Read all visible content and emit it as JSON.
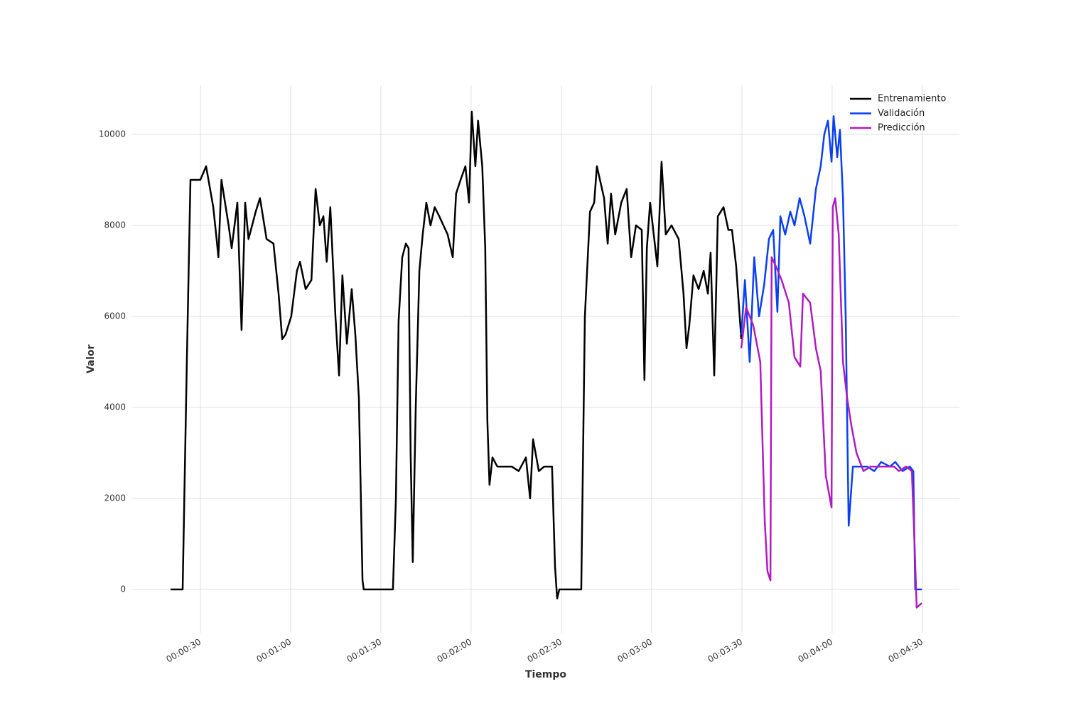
{
  "chart_data": {
    "type": "line",
    "x_label": "Tiempo",
    "y_label": "Valor",
    "xlim": [
      7.1,
      282.3
    ],
    "ylim": [
      -953,
      11078
    ],
    "xticks": [
      {
        "value": 30,
        "label": "00:00:30"
      },
      {
        "value": 60,
        "label": "00:01:00"
      },
      {
        "value": 90,
        "label": "00:01:30"
      },
      {
        "value": 120,
        "label": "00:02:00"
      },
      {
        "value": 150,
        "label": "00:02:30"
      },
      {
        "value": 180,
        "label": "00:03:00"
      },
      {
        "value": 210,
        "label": "00:03:30"
      },
      {
        "value": 240,
        "label": "00:04:00"
      },
      {
        "value": 270,
        "label": "00:04:30"
      }
    ],
    "yticks": [
      0,
      2000,
      4000,
      6000,
      8000,
      10000
    ],
    "grid": true,
    "legend": "upper right",
    "series": [
      {
        "name": "Entrenamiento",
        "color": "#000000",
        "x": [
          20.1,
          24.1,
          25.5,
          26.7,
          30,
          31.9,
          34.3,
          35.4,
          36,
          37,
          39.4,
          40.4,
          42.3,
          43.7,
          44.9,
          46,
          48.4,
          49.8,
          52,
          54.3,
          56,
          57.2,
          58.3,
          60.2,
          62.1,
          63.1,
          65,
          66.9,
          68.3,
          69.7,
          70.9,
          72,
          73.2,
          74.9,
          76.1,
          77.2,
          78.7,
          80.3,
          81.5,
          82.7,
          83.9,
          84.3,
          94,
          95,
          95.9,
          97.1,
          98.3,
          99.2,
          99.9,
          100.6,
          101.6,
          102.8,
          103.9,
          105.1,
          106.5,
          107.9,
          109.4,
          110.8,
          112.2,
          113.9,
          115,
          116.5,
          118.1,
          119.3,
          120.2,
          121.4,
          122.3,
          123.7,
          124.7,
          125.4,
          126.1,
          127.1,
          128.7,
          131.1,
          133.5,
          135.8,
          138.2,
          139.6,
          140.6,
          142.5,
          144.3,
          146.9,
          147.9,
          148.6,
          149.3,
          156.6,
          157.8,
          159.5,
          160.9,
          161.8,
          164.2,
          165.4,
          166.5,
          167.9,
          169.9,
          171.7,
          173.2,
          174.8,
          176.7,
          177.6,
          178.4,
          179.5,
          181.9,
          183.3,
          184.7,
          186.6,
          189,
          190.6,
          191.6,
          192.5,
          193.9,
          195.6,
          197.3,
          198.7,
          199.6,
          200.8,
          202,
          203.9,
          205.5,
          206.7,
          208.1,
          209.8
        ],
        "values": [
          0,
          0,
          5000,
          9000,
          9000,
          9300,
          8400,
          7700,
          7300,
          9000,
          8000,
          7500,
          8500,
          5700,
          8500,
          7700,
          8300,
          8600,
          7700,
          7600,
          6500,
          5500,
          5600,
          6000,
          7000,
          7200,
          6600,
          6800,
          8800,
          8000,
          8200,
          7200,
          8400,
          6000,
          4700,
          6900,
          5400,
          6600,
          5600,
          4200,
          200,
          0,
          0,
          2000,
          5900,
          7300,
          7600,
          7500,
          3000,
          600,
          4000,
          7000,
          7800,
          8500,
          8000,
          8400,
          8200,
          8000,
          7800,
          7300,
          8700,
          9000,
          9300,
          8500,
          10500,
          9300,
          10300,
          9300,
          7500,
          3700,
          2300,
          2900,
          2700,
          2700,
          2700,
          2600,
          2900,
          2000,
          3300,
          2600,
          2700,
          2700,
          500,
          -200,
          0,
          0,
          6000,
          8300,
          8500,
          9300,
          8600,
          7600,
          8700,
          7800,
          8500,
          8800,
          7300,
          8000,
          7900,
          4600,
          7500,
          8500,
          7100,
          9400,
          7800,
          8000,
          7700,
          6500,
          5300,
          5800,
          6900,
          6600,
          7000,
          6500,
          7400,
          4700,
          8200,
          8400,
          7900,
          7900,
          7100,
          5500
        ]
      },
      {
        "name": "Validación",
        "color": "#0a3ff2",
        "x": [
          209.8,
          211,
          212.6,
          214.1,
          215.7,
          217.4,
          219,
          220.4,
          221.8,
          222.8,
          224.4,
          226.1,
          227.5,
          229.2,
          230.8,
          232.7,
          234.6,
          236.2,
          237.4,
          238.6,
          239.8,
          240.5,
          241.7,
          242.6,
          243.6,
          244.5,
          245.5,
          246.9,
          249.2,
          251.6,
          254,
          256.3,
          259.2,
          261,
          263.4,
          265.8,
          267,
          267.6,
          269.8
        ],
        "values": [
          5600,
          6800,
          5000,
          7300,
          6000,
          6700,
          7700,
          7900,
          6100,
          8200,
          7800,
          8300,
          8000,
          8600,
          8200,
          7600,
          8800,
          9300,
          10000,
          10300,
          9400,
          10400,
          9500,
          10100,
          8600,
          6000,
          1400,
          2700,
          2700,
          2700,
          2600,
          2800,
          2700,
          2800,
          2600,
          2700,
          2600,
          0,
          0
        ]
      },
      {
        "name": "Predicción",
        "color": "#b01cbf",
        "x": [
          209.8,
          211.4,
          213.8,
          216.1,
          217.6,
          218.5,
          219.5,
          219.9,
          221.3,
          223.2,
          225.6,
          227.5,
          229.4,
          230.3,
          232.7,
          234.6,
          236.2,
          237.9,
          239.8,
          240.2,
          241,
          242.2,
          243.6,
          245,
          246.4,
          248.1,
          250.4,
          252.8,
          256.3,
          260.6,
          262.2,
          264.6,
          266.5,
          267.4,
          268.1,
          269.8
        ],
        "values": [
          5300,
          6200,
          5800,
          5000,
          1500,
          400,
          200,
          7300,
          7100,
          6800,
          6300,
          5100,
          4900,
          6500,
          6300,
          5300,
          4800,
          2500,
          1800,
          8400,
          8600,
          7800,
          5000,
          4200,
          3600,
          3000,
          2600,
          2700,
          2700,
          2700,
          2600,
          2700,
          2600,
          1000,
          -400,
          -300
        ]
      }
    ]
  }
}
